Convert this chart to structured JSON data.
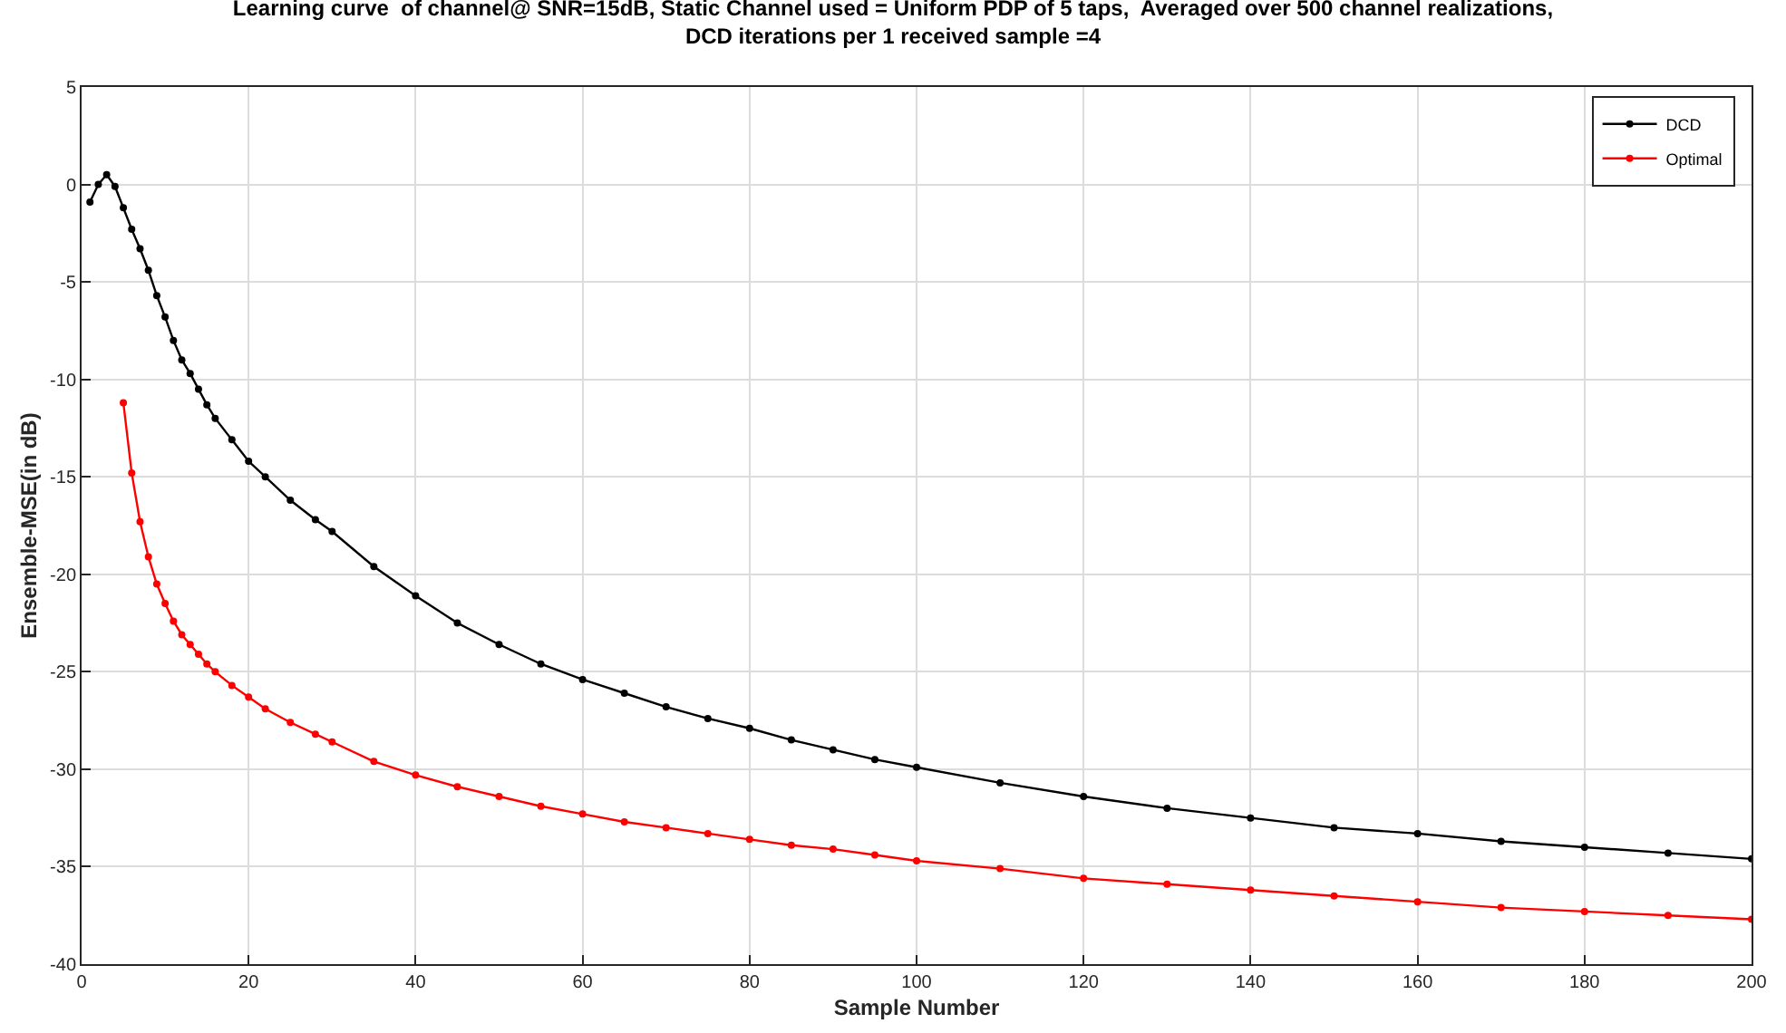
{
  "chart_data": {
    "type": "line",
    "title": "Learning curve  of channel@ SNR=15dB, Static Channel used = Uniform PDP of 5 taps,  Averaged over 500 channel realizations,\nDCD iterations per 1 received sample =4",
    "xlabel": "Sample Number",
    "ylabel": "Ensemble-MSE(in dB)",
    "xlim": [
      0,
      200
    ],
    "ylim": [
      -40,
      5
    ],
    "xticks": [
      0,
      20,
      40,
      60,
      80,
      100,
      120,
      140,
      160,
      180,
      200
    ],
    "yticks": [
      -40,
      -35,
      -30,
      -25,
      -20,
      -15,
      -10,
      -5,
      0,
      5
    ],
    "grid": true,
    "legend": "top right",
    "marker": "circle",
    "line_style": "solid",
    "series": [
      {
        "name": "DCD",
        "color": "#000000",
        "x": [
          1,
          2,
          3,
          4,
          5,
          6,
          7,
          8,
          9,
          10,
          11,
          12,
          13,
          14,
          15,
          16,
          18,
          20,
          22,
          25,
          28,
          30,
          35,
          40,
          45,
          50,
          55,
          60,
          65,
          70,
          75,
          80,
          85,
          90,
          95,
          100,
          110,
          120,
          130,
          140,
          150,
          160,
          170,
          180,
          190,
          200
        ],
        "values": [
          -0.9,
          0,
          0.5,
          -0.1,
          -1.2,
          -2.3,
          -3.3,
          -4.4,
          -5.7,
          -6.8,
          -8.0,
          -9.0,
          -9.7,
          -10.5,
          -11.3,
          -12.0,
          -13.1,
          -14.2,
          -15.0,
          -16.2,
          -17.2,
          -17.8,
          -19.6,
          -21.1,
          -22.5,
          -23.6,
          -24.6,
          -25.4,
          -26.1,
          -26.8,
          -27.4,
          -27.9,
          -28.5,
          -29.0,
          -29.5,
          -29.9,
          -30.7,
          -31.4,
          -32.0,
          -32.5,
          -33.0,
          -33.3,
          -33.7,
          -34.0,
          -34.3,
          -34.6
        ]
      },
      {
        "name": "Optimal",
        "color": "#ff0000",
        "x": [
          5,
          6,
          7,
          8,
          9,
          10,
          11,
          12,
          13,
          14,
          15,
          16,
          18,
          20,
          22,
          25,
          28,
          30,
          35,
          40,
          45,
          50,
          55,
          60,
          65,
          70,
          75,
          80,
          85,
          90,
          95,
          100,
          110,
          120,
          130,
          140,
          150,
          160,
          170,
          180,
          190,
          200
        ],
        "values": [
          -11.2,
          -14.8,
          -17.3,
          -19.1,
          -20.5,
          -21.5,
          -22.4,
          -23.1,
          -23.6,
          -24.1,
          -24.6,
          -25.0,
          -25.7,
          -26.3,
          -26.9,
          -27.6,
          -28.2,
          -28.6,
          -29.6,
          -30.3,
          -30.9,
          -31.4,
          -31.9,
          -32.3,
          -32.7,
          -33.0,
          -33.3,
          -33.6,
          -33.9,
          -34.1,
          -34.4,
          -34.7,
          -35.1,
          -35.6,
          -35.9,
          -36.2,
          -36.5,
          -36.8,
          -37.1,
          -37.3,
          -37.5,
          -37.7
        ]
      }
    ]
  }
}
